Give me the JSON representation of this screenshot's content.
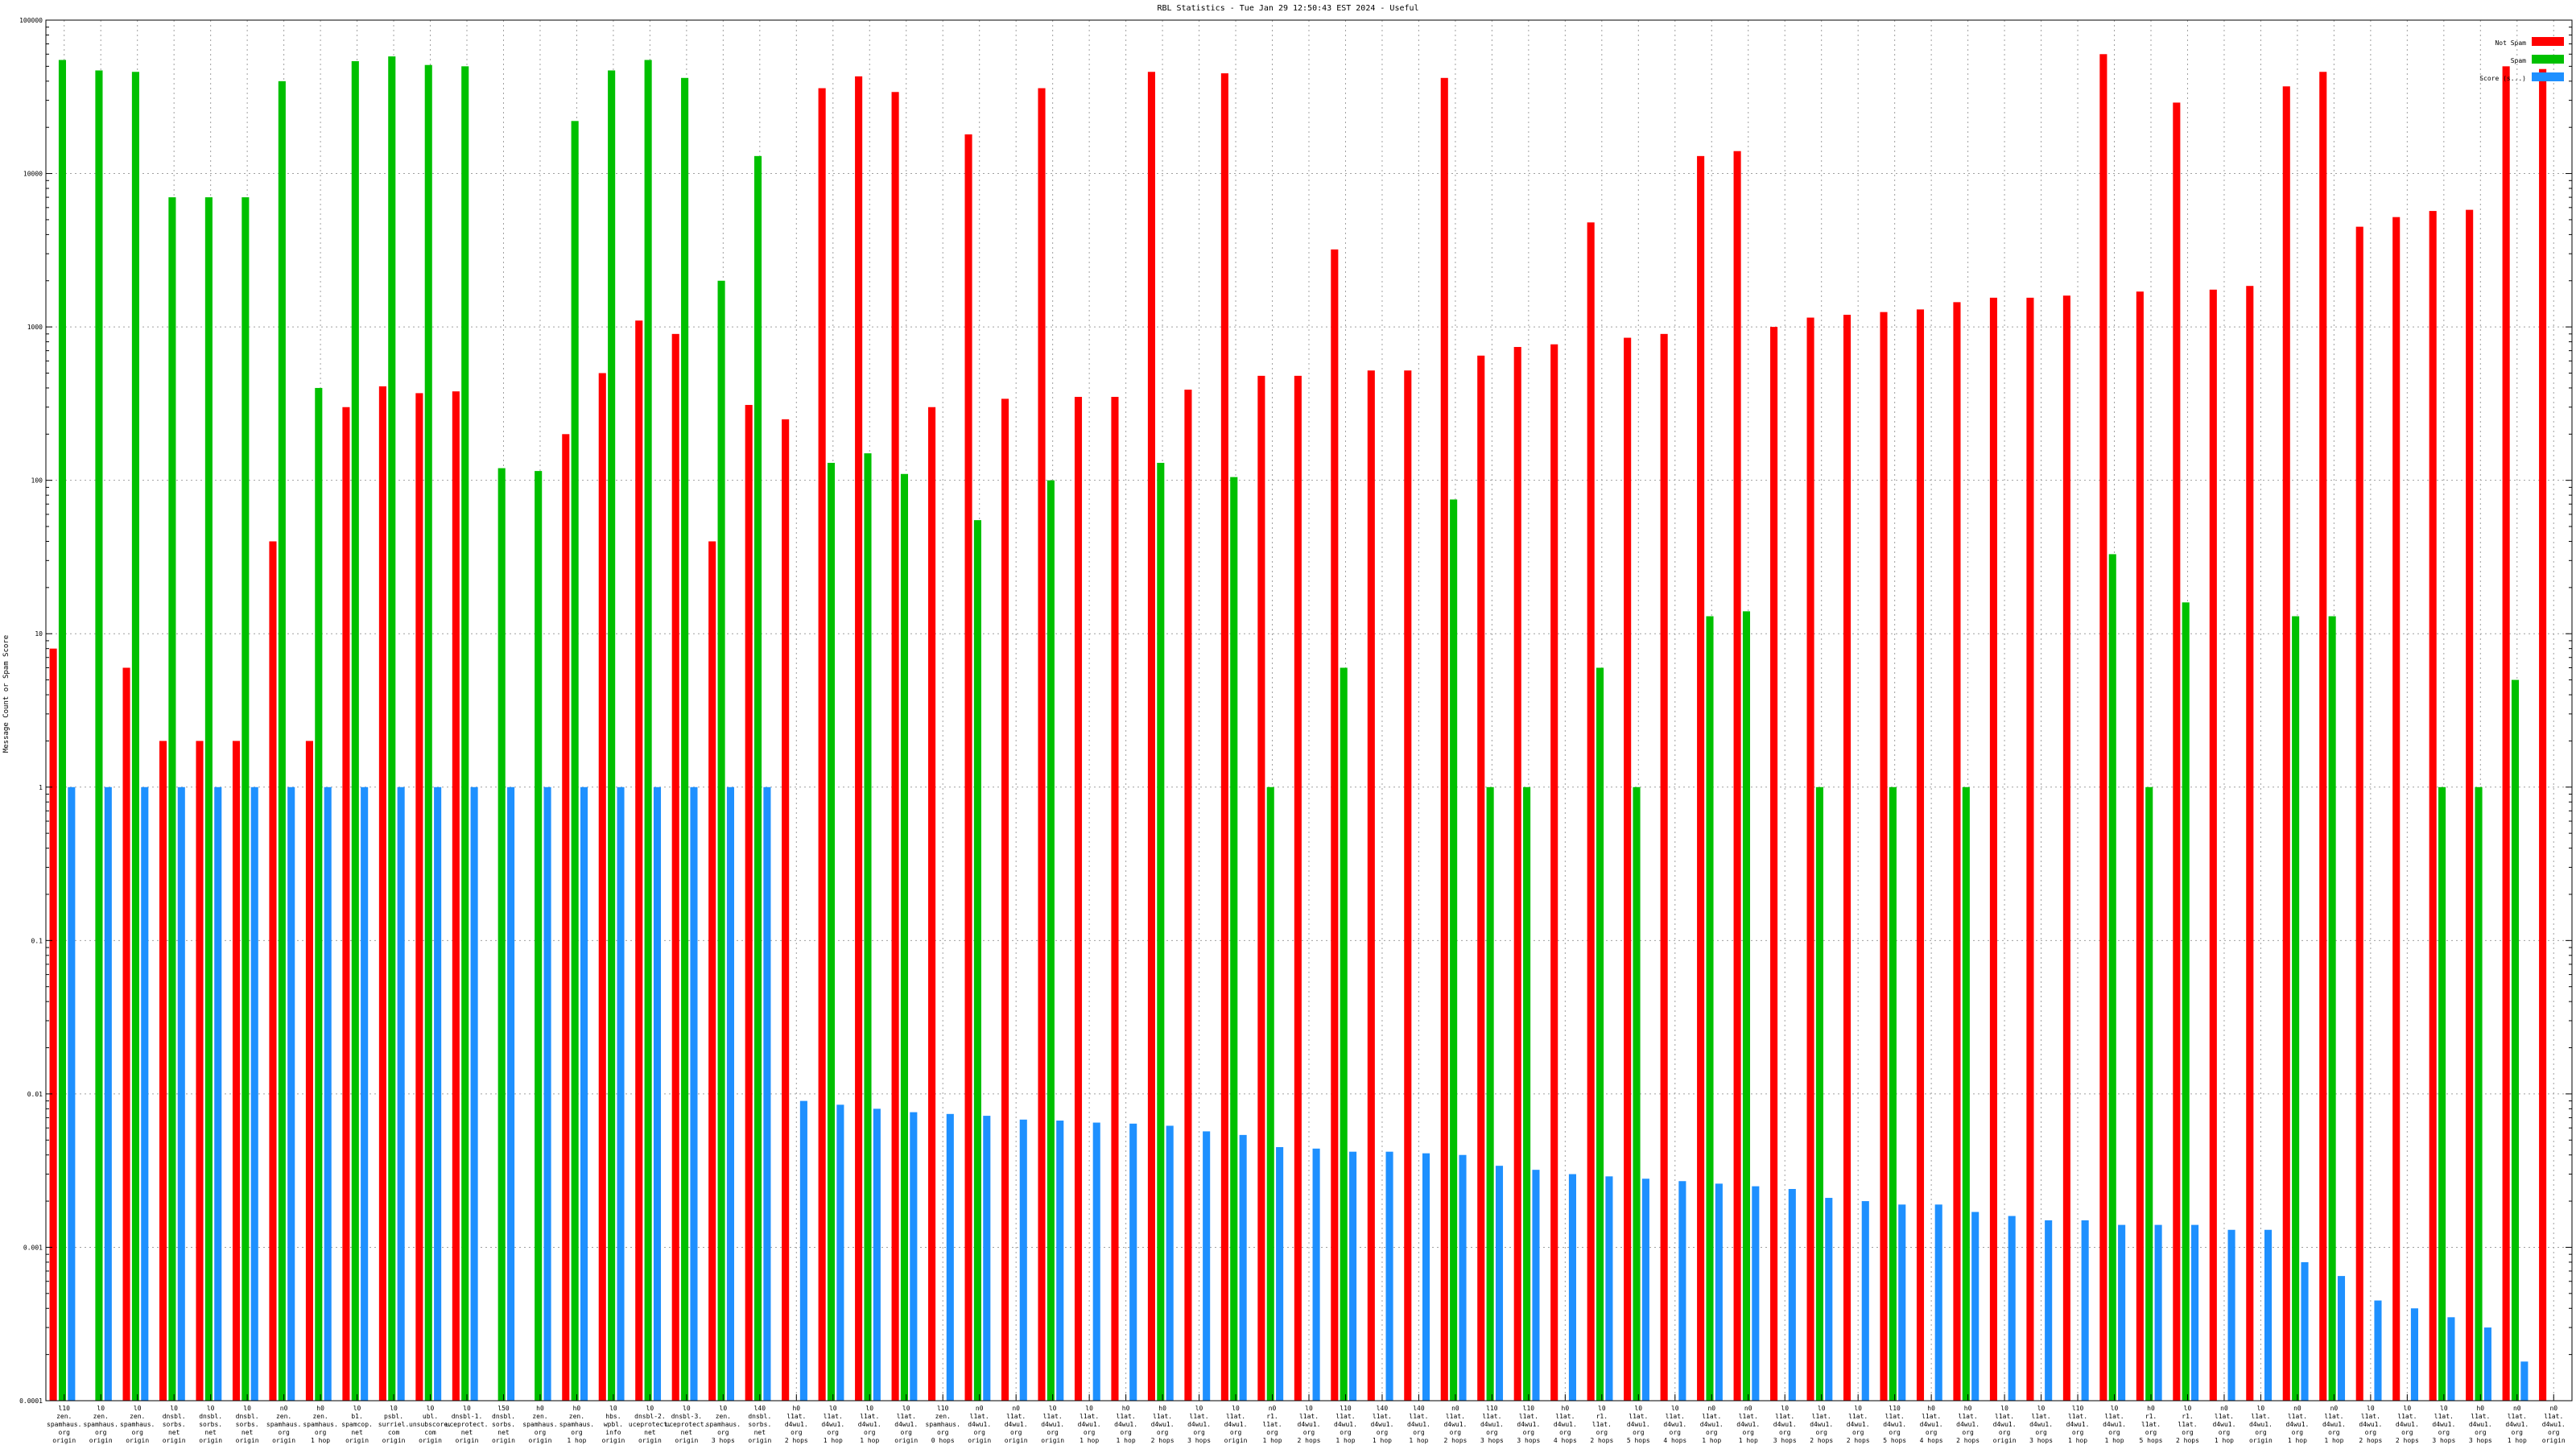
{
  "chart_data": {
    "type": "bar",
    "title": "RBL Statistics - Tue Jan 29 12:50:43 EST 2024 - Useful",
    "ylabel": "Message Count or Spam Score",
    "xlabel": "",
    "yscale": "log",
    "ylim": [
      0.0001,
      100000
    ],
    "yticks": [
      "0.0001",
      "0.001",
      "0.01",
      "0.1",
      "1",
      "10",
      "100",
      "1000",
      "10000",
      "100000"
    ],
    "grid": true,
    "legend_position": "top-right",
    "series": [
      {
        "name": "Not Spam",
        "color": "#ff0000"
      },
      {
        "name": "Spam",
        "color": "#00c000"
      },
      {
        "name": "Score (s...)",
        "color": "#1e90ff"
      }
    ],
    "categories": [
      {
        "label": "l10\nzen.\nspamhaus.\norg\norigin",
        "ns": 8,
        "sp": 55000,
        "sc": 1
      },
      {
        "label": "l0\nzen.\nspamhaus.\norg\norigin",
        "ns": null,
        "sp": 47000,
        "sc": 1
      },
      {
        "label": "l0\nzen.\nspamhaus.\norg\norigin",
        "ns": 6,
        "sp": 46000,
        "sc": 1
      },
      {
        "label": "l0\ndnsbl.\nsorbs.\nnet\norigin",
        "ns": 2,
        "sp": 7000,
        "sc": 1
      },
      {
        "label": "l0\ndnsbl.\nsorbs.\nnet\norigin",
        "ns": 2,
        "sp": 7000,
        "sc": 1
      },
      {
        "label": "l0\ndnsbl.\nsorbs.\nnet\norigin",
        "ns": 2,
        "sp": 7000,
        "sc": 1
      },
      {
        "label": "n0\nzen.\nspamhaus.\norg\norigin",
        "ns": 40,
        "sp": 40000,
        "sc": 1
      },
      {
        "label": "h0\nzen.\nspamhaus.\norg\n1 hop",
        "ns": 2,
        "sp": 400,
        "sc": 1
      },
      {
        "label": "l0\nb1.\nspamcop.\nnet\norigin",
        "ns": 300,
        "sp": 54000,
        "sc": 1
      },
      {
        "label": "l0\npsbl.\nsurriel.\ncom\norigin",
        "ns": 410,
        "sp": 58000,
        "sc": 1
      },
      {
        "label": "l0\nubl.\nunsubscore.\ncom\norigin",
        "ns": 370,
        "sp": 51000,
        "sc": 1
      },
      {
        "label": "l0\ndnsbl-1.\nuceprotect.\nnet\norigin",
        "ns": 380,
        "sp": 50000,
        "sc": 1
      },
      {
        "label": "l50\ndnsbl.\nsorbs.\nnet\norigin",
        "ns": null,
        "sp": 120,
        "sc": 1
      },
      {
        "label": "h0\nzen.\nspamhaus.\norg\norigin",
        "ns": null,
        "sp": 115,
        "sc": 1
      },
      {
        "label": "h0\nzen.\nspamhaus.\norg\n1 hop",
        "ns": 200,
        "sp": 22000,
        "sc": 1
      },
      {
        "label": "l0\nhbs.\nwpbl.\ninfo\norigin",
        "ns": 500,
        "sp": 47000,
        "sc": 1
      },
      {
        "label": "l0\ndnsbl-2.\nuceprotect.\nnet\norigin",
        "ns": 1100,
        "sp": 55000,
        "sc": 1
      },
      {
        "label": "l0\ndnsbl-3.\nuceprotect.\nnet\norigin",
        "ns": 900,
        "sp": 42000,
        "sc": 1
      },
      {
        "label": "l0\nzen.\nspamhaus.\norg\n3 hops",
        "ns": 40,
        "sp": 2000,
        "sc": 1
      },
      {
        "label": "l40\ndnsbl.\nsorbs.\nnet\norigin",
        "ns": 310,
        "sp": 13000,
        "sc": 1
      },
      {
        "label": "h0\nl1at.\nd4wu1.\norg\n2 hops",
        "ns": 250,
        "sp": null,
        "sc": 0.009
      },
      {
        "label": "l0\nl1at.\nd4wu1.\norg\n1 hop",
        "ns": 36000,
        "sp": 130,
        "sc": 0.0085
      },
      {
        "label": "l0\nl1at.\nd4wu1.\norg\n1 hop",
        "ns": 43000,
        "sp": 150,
        "sc": 0.008
      },
      {
        "label": "l0\nl1at.\nd4wu1.\norg\norigin",
        "ns": 34000,
        "sp": 110,
        "sc": 0.0076
      },
      {
        "label": "l10\nzen.\nspamhaus.\norg\n0 hops",
        "ns": 300,
        "sp": null,
        "sc": 0.0074
      },
      {
        "label": "n0\nl1at.\nd4wu1.\norg\norigin",
        "ns": 18000,
        "sp": 55,
        "sc": 0.0072
      },
      {
        "label": "n0\nl1at.\nd4wu1.\norg\norigin",
        "ns": 340,
        "sp": null,
        "sc": 0.0068
      },
      {
        "label": "l0\nl1at.\nd4wu1.\norg\norigin",
        "ns": 36000,
        "sp": 100,
        "sc": 0.0067
      },
      {
        "label": "l0\nl1at.\nd4wu1.\norg\n1 hop",
        "ns": 350,
        "sp": null,
        "sc": 0.0065
      },
      {
        "label": "h0\nl1at.\nd4wu1.\norg\n1 hop",
        "ns": 350,
        "sp": null,
        "sc": 0.0064
      },
      {
        "label": "h0\nl1at.\nd4wu1.\norg\n2 hops",
        "ns": 46000,
        "sp": 130,
        "sc": 0.0062
      },
      {
        "label": "l0\nl1at.\nd4wu1.\norg\n3 hops",
        "ns": 390,
        "sp": null,
        "sc": 0.0057
      },
      {
        "label": "l0\nl1at.\nd4wu1.\norg\norigin",
        "ns": 45000,
        "sp": 105,
        "sc": 0.0054
      },
      {
        "label": "n0\nr1.\nl1at.\norg\n1 hop",
        "ns": 480,
        "sp": 1,
        "sc": 0.0045
      },
      {
        "label": "l0\nl1at.\nd4wu1.\norg\n2 hops",
        "ns": 480,
        "sp": null,
        "sc": 0.0044
      },
      {
        "label": "l10\nl1at.\nd4wu1.\norg\n1 hop",
        "ns": 3200,
        "sp": 6,
        "sc": 0.0042
      },
      {
        "label": "l40\nl1at.\nd4wu1.\norg\n1 hop",
        "ns": 520,
        "sp": null,
        "sc": 0.0042
      },
      {
        "label": "l40\nl1at.\nd4wu1.\norg\n1 hop",
        "ns": 520,
        "sp": null,
        "sc": 0.0041
      },
      {
        "label": "n0\nl1at.\nd4wu1.\norg\n2 hops",
        "ns": 42000,
        "sp": 75,
        "sc": 0.004
      },
      {
        "label": "l10\nl1at.\nd4wu1.\norg\n3 hops",
        "ns": 650,
        "sp": 1,
        "sc": 0.0034
      },
      {
        "label": "l10\nl1at.\nd4wu1.\norg\n3 hops",
        "ns": 740,
        "sp": 1,
        "sc": 0.0032
      },
      {
        "label": "h0\nl1at.\nd4wu1.\norg\n4 hops",
        "ns": 770,
        "sp": null,
        "sc": 0.003
      },
      {
        "label": "l0\nr1.\nl1at.\norg\n2 hops",
        "ns": 4800,
        "sp": 6,
        "sc": 0.0029
      },
      {
        "label": "l0\nl1at.\nd4wu1.\norg\n5 hops",
        "ns": 850,
        "sp": 1,
        "sc": 0.0028
      },
      {
        "label": "l0\nl1at.\nd4wu1.\norg\n4 hops",
        "ns": 900,
        "sp": null,
        "sc": 0.0027
      },
      {
        "label": "n0\nl1at.\nd4wu1.\norg\n1 hop",
        "ns": 13000,
        "sp": 13,
        "sc": 0.0026
      },
      {
        "label": "n0\nl1at.\nd4wu1.\norg\n1 hop",
        "ns": 14000,
        "sp": 14,
        "sc": 0.0025
      },
      {
        "label": "l0\nl1at.\nd4wu1.\norg\n3 hops",
        "ns": 1000,
        "sp": null,
        "sc": 0.0024
      },
      {
        "label": "l0\nl1at.\nd4wu1.\norg\n2 hops",
        "ns": 1150,
        "sp": 1,
        "sc": 0.0021
      },
      {
        "label": "l0\nl1at.\nd4wu1.\norg\n2 hops",
        "ns": 1200,
        "sp": null,
        "sc": 0.002
      },
      {
        "label": "l10\nl1at.\nd4wu1.\norg\n5 hops",
        "ns": 1250,
        "sp": 1,
        "sc": 0.0019
      },
      {
        "label": "h0\nl1at.\nd4wu1.\norg\n4 hops",
        "ns": 1300,
        "sp": null,
        "sc": 0.0019
      },
      {
        "label": "h0\nl1at.\nd4wu1.\norg\n2 hops",
        "ns": 1450,
        "sp": 1,
        "sc": 0.0017
      },
      {
        "label": "l0\nl1at.\nd4wu1.\norg\norigin",
        "ns": 1550,
        "sp": null,
        "sc": 0.0016
      },
      {
        "label": "l0\nl1at.\nd4wu1.\norg\n3 hops",
        "ns": 1550,
        "sp": null,
        "sc": 0.0015
      },
      {
        "label": "l10\nl1at.\nd4wu1.\norg\n1 hop",
        "ns": 1600,
        "sp": null,
        "sc": 0.0015
      },
      {
        "label": "l0\nl1at.\nd4wu1.\norg\n1 hop",
        "ns": 60000,
        "sp": 33,
        "sc": 0.0014
      },
      {
        "label": "h0\nr1.\nl1at.\norg\n5 hops",
        "ns": 1700,
        "sp": 1,
        "sc": 0.0014
      },
      {
        "label": "l0\nr1.\nl1at.\norg\n2 hops",
        "ns": 29000,
        "sp": 16,
        "sc": 0.0014
      },
      {
        "label": "n0\nl1at.\nd4wu1.\norg\n1 hop",
        "ns": 1750,
        "sp": null,
        "sc": 0.0013
      },
      {
        "label": "l0\nl1at.\nd4wu1.\norg\norigin",
        "ns": 1850,
        "sp": null,
        "sc": 0.0013
      },
      {
        "label": "n0\nl1at.\nd4wu1.\norg\n1 hop",
        "ns": 37000,
        "sp": 13,
        "sc": 0.0008
      },
      {
        "label": "n0\nl1at.\nd4wu1.\norg\n1 hop",
        "ns": 46000,
        "sp": 13,
        "sc": 0.00065
      },
      {
        "label": "l0\nl1at.\nd4wu1.\norg\n2 hops",
        "ns": 4500,
        "sp": null,
        "sc": 0.00045
      },
      {
        "label": "l0\nl1at.\nd4wu1.\norg\n2 hops",
        "ns": 5200,
        "sp": null,
        "sc": 0.0004
      },
      {
        "label": "l0\nl1at.\nd4wu1.\norg\n3 hops",
        "ns": 5700,
        "sp": 1,
        "sc": 0.00035
      },
      {
        "label": "h0\nl1at.\nd4wu1.\norg\n3 hops",
        "ns": 5800,
        "sp": 1,
        "sc": 0.0003
      },
      {
        "label": "n0\nl1at.\nd4wu1.\norg\n1 hop",
        "ns": 50000,
        "sp": 5,
        "sc": 0.00018
      },
      {
        "label": "n0\nl1at.\nd4wu1.\norg\norigin",
        "ns": 48000,
        "sp": null,
        "sc": null
      }
    ]
  }
}
